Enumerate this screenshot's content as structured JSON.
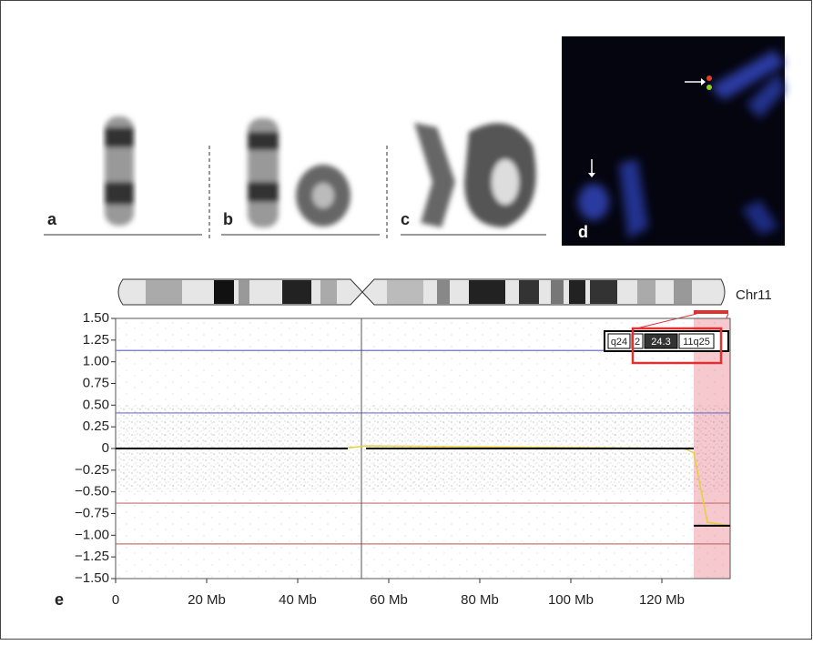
{
  "panels": [
    "a",
    "b",
    "c",
    "d",
    "e"
  ],
  "chart_data": {
    "type": "scatter",
    "chromosome": "Chr11",
    "band_labels": [
      "q24",
      "2",
      "24.3",
      "11q25"
    ],
    "xlim": [
      0,
      135
    ],
    "xticks": [
      0,
      {
        "value": 20,
        "label": "20 Mb"
      },
      {
        "value": 40,
        "label": "40 Mb"
      },
      {
        "value": 60,
        "label": "60 Mb"
      },
      {
        "value": 80,
        "label": "80 Mb"
      },
      {
        "value": 100,
        "label": "100 Mb"
      },
      {
        "value": 120,
        "label": "120 Mb"
      }
    ],
    "ylim": [
      -1.5,
      1.5
    ],
    "yticks": [
      {
        "value": 1.5,
        "label": "1.50"
      },
      {
        "value": 1.25,
        "label": "1.25"
      },
      {
        "value": 1,
        "label": "1.00"
      },
      {
        "value": 0.75,
        "label": "0.75"
      },
      {
        "value": 0.5,
        "label": "0.50"
      },
      {
        "value": 0.25,
        "label": "0.25"
      },
      0,
      {
        "value": -0.25,
        "label": "−0.25"
      },
      {
        "value": -0.5,
        "label": "−0.50"
      },
      {
        "value": -0.75,
        "label": "−0.75"
      },
      {
        "value": -1,
        "label": "−1.00"
      },
      {
        "value": -1.25,
        "label": "−1.25"
      },
      {
        "value": -1.5,
        "label": "−1.50"
      }
    ],
    "thresholds": [
      {
        "value": 1.13,
        "color": "#7070c8"
      },
      {
        "value": 0.41,
        "color": "#7070c8"
      },
      {
        "value": -0.63,
        "color": "#c87070"
      },
      {
        "value": -1.1,
        "color": "#c87070"
      }
    ],
    "centromere": 54,
    "highlight": [
      127,
      135
    ],
    "lines": [
      {
        "color": "#e6cf3a",
        "x": [
          0,
          50,
          55,
          125,
          127,
          130,
          135
        ],
        "values": [
          0,
          0,
          0.03,
          0,
          -0.05,
          -0.85,
          -0.89
        ]
      },
      {
        "color": "#000000",
        "x": [
          0,
          51
        ],
        "values": [
          0,
          0
        ]
      },
      {
        "color": "#000000",
        "x": [
          55,
          127
        ],
        "values": [
          0,
          0
        ]
      },
      {
        "color": "#000000",
        "x": [
          127,
          135
        ],
        "values": [
          -0.89,
          -0.89
        ]
      }
    ]
  }
}
